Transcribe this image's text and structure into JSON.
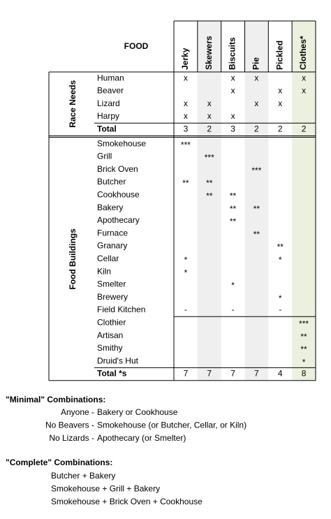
{
  "header": {
    "title": "FOOD",
    "columns": [
      "Jerky",
      "Skewers",
      "Biscuits",
      "Pie",
      "Pickled",
      "Clothes*"
    ]
  },
  "race_needs": {
    "label": "Race Needs",
    "rows": [
      {
        "name": "Human",
        "cells": [
          "x",
          null,
          "x",
          "x",
          null,
          "x"
        ]
      },
      {
        "name": "Beaver",
        "cells": [
          null,
          null,
          "x",
          null,
          "x",
          "x"
        ]
      },
      {
        "name": "Lizard",
        "cells": [
          "x",
          "x",
          null,
          "x",
          "x",
          null
        ]
      },
      {
        "name": "Harpy",
        "cells": [
          "x",
          "x",
          "x",
          null,
          null,
          null
        ]
      }
    ],
    "total": {
      "name": "Total",
      "cells": [
        3,
        2,
        3,
        2,
        2,
        2
      ]
    }
  },
  "food_buildings": {
    "label": "Food Buildings",
    "rows": [
      {
        "name": "Smokehouse",
        "cells": [
          "***",
          null,
          null,
          null,
          null,
          null
        ]
      },
      {
        "name": "Grill",
        "cells": [
          null,
          "***",
          null,
          null,
          null,
          null
        ]
      },
      {
        "name": "Brick Oven",
        "cells": [
          null,
          null,
          null,
          "***",
          null,
          null
        ]
      },
      {
        "name": "Butcher",
        "cells": [
          "**",
          "**",
          null,
          null,
          null,
          null
        ]
      },
      {
        "name": "Cookhouse",
        "cells": [
          null,
          "**",
          "**",
          null,
          null,
          null
        ]
      },
      {
        "name": "Bakery",
        "cells": [
          null,
          null,
          "**",
          "**",
          null,
          null
        ]
      },
      {
        "name": "Apothecary",
        "cells": [
          null,
          null,
          "**",
          null,
          null,
          null
        ]
      },
      {
        "name": "Furnace",
        "cells": [
          null,
          null,
          null,
          "**",
          null,
          null
        ]
      },
      {
        "name": "Granary",
        "cells": [
          null,
          null,
          null,
          null,
          "**",
          null
        ]
      },
      {
        "name": "Cellar",
        "cells": [
          "*",
          null,
          null,
          null,
          "*",
          null
        ]
      },
      {
        "name": "Kiln",
        "cells": [
          "*",
          null,
          null,
          null,
          null,
          null
        ]
      },
      {
        "name": "Smelter",
        "cells": [
          null,
          null,
          "*",
          null,
          null,
          null
        ]
      },
      {
        "name": "Brewery",
        "cells": [
          null,
          null,
          null,
          null,
          "*",
          null
        ]
      },
      {
        "name": "Field Kitchen",
        "cells": [
          "-",
          null,
          "-",
          null,
          "-",
          null
        ]
      },
      {
        "name": "Clothier",
        "cells": [
          null,
          null,
          null,
          null,
          null,
          "***"
        ]
      },
      {
        "name": "Artisan",
        "cells": [
          null,
          null,
          null,
          null,
          null,
          "**"
        ]
      },
      {
        "name": "Smithy",
        "cells": [
          null,
          null,
          null,
          null,
          null,
          "**"
        ]
      },
      {
        "name": "Druid's Hut",
        "cells": [
          null,
          null,
          null,
          null,
          null,
          "*"
        ]
      }
    ],
    "total": {
      "name": "Total *s",
      "cells": [
        7,
        7,
        7,
        7,
        4,
        8
      ]
    }
  },
  "minimal": {
    "title": "\"Minimal\" Combinations:",
    "rows": [
      {
        "label": "Anyone -",
        "text": "Bakery or Cookhouse"
      },
      {
        "label": "No Beavers -",
        "text": "Smokehouse (or Butcher, Cellar, or Kiln)"
      },
      {
        "label": "No Lizards -",
        "text": "Apothecary (or Smelter)"
      }
    ]
  },
  "complete": {
    "title": "\"Complete\" Combinations:",
    "rows": [
      "Butcher + Bakery",
      "Smokehouse + Grill + Bakery",
      "Smokehouse + Brick Oven + Cookhouse"
    ]
  }
}
